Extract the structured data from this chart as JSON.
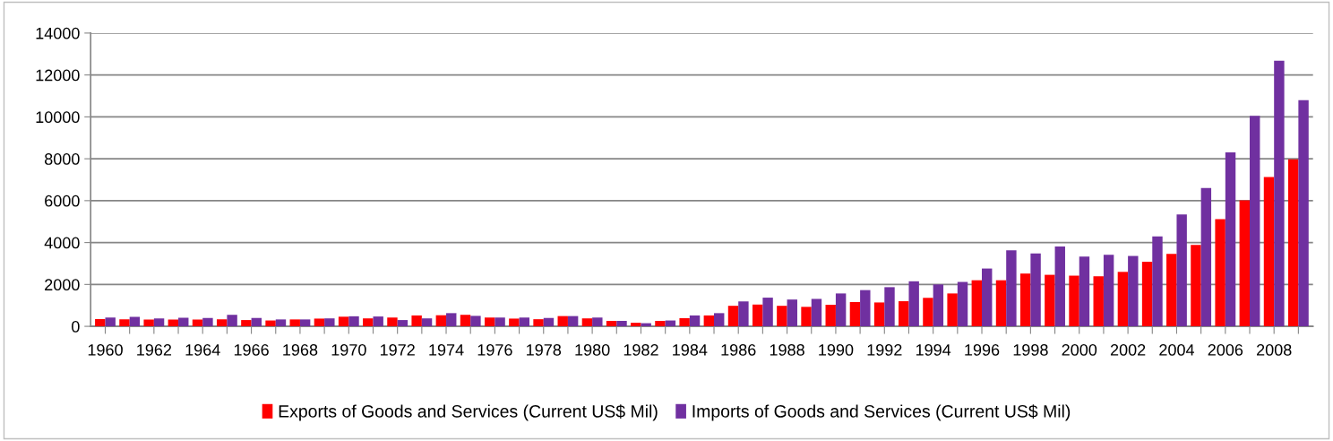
{
  "chart_data": {
    "type": "bar",
    "categories": [
      "1960",
      null,
      "1962",
      null,
      "1964",
      null,
      "1966",
      null,
      "1968",
      null,
      "1970",
      null,
      "1972",
      null,
      "1974",
      null,
      "1976",
      null,
      "1978",
      null,
      "1980",
      null,
      "1982",
      null,
      "1984",
      null,
      "1986",
      null,
      "1988",
      null,
      "1990",
      null,
      "1992",
      null,
      "1994",
      null,
      "1996",
      null,
      "1998",
      null,
      "2000",
      null,
      "2002",
      null,
      "2004",
      null,
      "2006",
      null,
      "2008",
      null
    ],
    "series": [
      {
        "name": "Exports of Goods and Services (Current US$ Mil)",
        "color": "#ff0000",
        "values": [
          350,
          340,
          320,
          320,
          320,
          330,
          300,
          280,
          330,
          370,
          460,
          380,
          420,
          520,
          530,
          550,
          420,
          370,
          340,
          490,
          380,
          260,
          170,
          260,
          390,
          520,
          980,
          1040,
          980,
          930,
          1030,
          1160,
          1140,
          1200,
          1360,
          1570,
          2200,
          2200,
          2520,
          2460,
          2420,
          2390,
          2600,
          3080,
          3460,
          3890,
          5120,
          6020,
          7130,
          7970
        ]
      },
      {
        "name": "Imports of Goods and Services (Current US$ Mil)",
        "color": "#7030a0",
        "values": [
          420,
          450,
          380,
          410,
          400,
          550,
          400,
          330,
          330,
          380,
          480,
          470,
          300,
          380,
          630,
          500,
          420,
          420,
          400,
          490,
          420,
          260,
          150,
          280,
          520,
          630,
          1190,
          1370,
          1280,
          1310,
          1570,
          1730,
          1870,
          2150,
          2000,
          2120,
          2760,
          3630,
          3480,
          3810,
          3330,
          3420,
          3360,
          4290,
          5340,
          6600,
          8300,
          10050,
          12680,
          10800
        ]
      }
    ],
    "ylim": [
      0,
      14000
    ],
    "yticks": [
      0,
      2000,
      4000,
      6000,
      8000,
      10000,
      12000,
      14000
    ],
    "grid": "y",
    "legend": "bottom"
  }
}
